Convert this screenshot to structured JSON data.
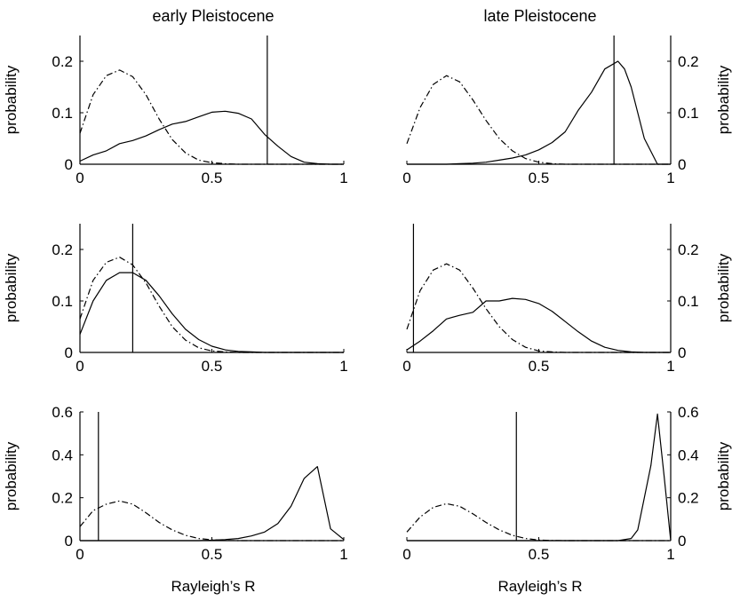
{
  "figure": {
    "col_titles": [
      "early Pleistocene",
      "late Pleistocene"
    ],
    "xlabel": "Rayleigh’s R",
    "ylabel": "probability"
  },
  "chart_data": [
    {
      "type": "line",
      "panel": "row1-left",
      "title": "early Pleistocene",
      "xlabel": "",
      "ylabel": "probability",
      "xlim": [
        0,
        1
      ],
      "ylim": [
        0,
        0.25
      ],
      "xticks": [
        0,
        0.5,
        1
      ],
      "xtick_labels": [
        "0",
        "0.5",
        "1"
      ],
      "yticks": [
        0,
        0.1,
        0.2
      ],
      "ytick_labels": [
        "0",
        "0.1",
        "0.2"
      ],
      "yaxis_side": "left",
      "grid": false,
      "series": [
        {
          "style": "dash-dot",
          "x": [
            0,
            0.05,
            0.1,
            0.15,
            0.2,
            0.25,
            0.3,
            0.35,
            0.4,
            0.45,
            0.5,
            0.55,
            0.6,
            0.65,
            0.7,
            0.75,
            0.8,
            0.85,
            0.9,
            0.95,
            1.0
          ],
          "y": [
            0.06,
            0.135,
            0.172,
            0.183,
            0.17,
            0.135,
            0.088,
            0.048,
            0.022,
            0.008,
            0.003,
            0.001,
            0,
            0,
            0,
            0,
            0,
            0,
            0,
            0,
            0
          ]
        },
        {
          "style": "solid",
          "x": [
            0,
            0.05,
            0.1,
            0.15,
            0.2,
            0.25,
            0.3,
            0.35,
            0.4,
            0.45,
            0.5,
            0.55,
            0.6,
            0.65,
            0.7,
            0.75,
            0.8,
            0.85,
            0.9,
            0.95,
            1.0
          ],
          "y": [
            0.006,
            0.018,
            0.026,
            0.04,
            0.046,
            0.055,
            0.067,
            0.078,
            0.083,
            0.092,
            0.101,
            0.103,
            0.099,
            0.088,
            0.058,
            0.035,
            0.015,
            0.004,
            0.001,
            0,
            0
          ]
        }
      ],
      "vline": 0.71
    },
    {
      "type": "line",
      "panel": "row1-right",
      "title": "late Pleistocene",
      "xlabel": "",
      "ylabel": "probability",
      "xlim": [
        0,
        1
      ],
      "ylim": [
        0,
        0.25
      ],
      "xticks": [
        0,
        0.5,
        1
      ],
      "xtick_labels": [
        "0",
        "0.5",
        "1"
      ],
      "yticks": [
        0,
        0.1,
        0.2
      ],
      "ytick_labels": [
        "0",
        "0.1",
        "0.2"
      ],
      "yaxis_side": "right",
      "grid": false,
      "series": [
        {
          "style": "dash-dot",
          "x": [
            0,
            0.05,
            0.1,
            0.15,
            0.2,
            0.25,
            0.3,
            0.35,
            0.4,
            0.45,
            0.5,
            0.55,
            0.6,
            0.65,
            0.7,
            0.75,
            0.8,
            0.85,
            0.9,
            0.95,
            1.0
          ],
          "y": [
            0.04,
            0.11,
            0.155,
            0.172,
            0.16,
            0.125,
            0.085,
            0.05,
            0.026,
            0.011,
            0.004,
            0.001,
            0,
            0,
            0,
            0,
            0,
            0,
            0,
            0,
            0
          ]
        },
        {
          "style": "solid",
          "x": [
            0,
            0.05,
            0.1,
            0.15,
            0.2,
            0.25,
            0.3,
            0.35,
            0.4,
            0.45,
            0.5,
            0.55,
            0.6,
            0.65,
            0.7,
            0.75,
            0.8,
            0.825,
            0.85,
            0.9,
            0.95,
            1.0
          ],
          "y": [
            0,
            0,
            0,
            0,
            0.001,
            0.002,
            0.004,
            0.008,
            0.012,
            0.018,
            0.028,
            0.042,
            0.063,
            0.105,
            0.14,
            0.185,
            0.2,
            0.185,
            0.15,
            0.05,
            0,
            0
          ]
        }
      ],
      "vline": 0.785
    },
    {
      "type": "line",
      "panel": "row2-left",
      "title": "",
      "xlabel": "",
      "ylabel": "probability",
      "xlim": [
        0,
        1
      ],
      "ylim": [
        0,
        0.25
      ],
      "xticks": [
        0,
        0.5,
        1
      ],
      "xtick_labels": [
        "0",
        "0.5",
        "1"
      ],
      "yticks": [
        0,
        0.1,
        0.2
      ],
      "ytick_labels": [
        "0",
        "0.1",
        "0.2"
      ],
      "yaxis_side": "left",
      "grid": false,
      "series": [
        {
          "style": "dash-dot",
          "x": [
            0,
            0.05,
            0.1,
            0.15,
            0.2,
            0.25,
            0.3,
            0.35,
            0.4,
            0.45,
            0.5,
            0.55,
            0.6,
            0.65,
            0.7,
            0.75,
            0.8,
            0.85,
            0.9,
            0.95,
            1.0
          ],
          "y": [
            0.065,
            0.14,
            0.175,
            0.185,
            0.17,
            0.135,
            0.09,
            0.05,
            0.024,
            0.009,
            0.003,
            0.001,
            0,
            0,
            0,
            0,
            0,
            0,
            0,
            0,
            0
          ]
        },
        {
          "style": "solid",
          "x": [
            0,
            0.05,
            0.1,
            0.15,
            0.2,
            0.25,
            0.3,
            0.35,
            0.4,
            0.45,
            0.5,
            0.55,
            0.6,
            0.65,
            0.7,
            0.75,
            0.8,
            0.85,
            0.9,
            0.95,
            1.0
          ],
          "y": [
            0.035,
            0.1,
            0.14,
            0.155,
            0.155,
            0.14,
            0.11,
            0.075,
            0.045,
            0.025,
            0.012,
            0.005,
            0.002,
            0.001,
            0,
            0,
            0,
            0,
            0,
            0,
            0
          ]
        }
      ],
      "vline": 0.2
    },
    {
      "type": "line",
      "panel": "row2-right",
      "title": "",
      "xlabel": "",
      "ylabel": "probability",
      "xlim": [
        0,
        1
      ],
      "ylim": [
        0,
        0.25
      ],
      "xticks": [
        0,
        0.5,
        1
      ],
      "xtick_labels": [
        "0",
        "0.5",
        "1"
      ],
      "yticks": [
        0,
        0.1,
        0.2
      ],
      "ytick_labels": [
        "0",
        "0.1",
        "0.2"
      ],
      "yaxis_side": "right",
      "grid": false,
      "series": [
        {
          "style": "dash-dot",
          "x": [
            0,
            0.05,
            0.1,
            0.15,
            0.2,
            0.25,
            0.3,
            0.35,
            0.4,
            0.45,
            0.5,
            0.55,
            0.6,
            0.65,
            0.7,
            0.75,
            0.8,
            0.85,
            0.9,
            0.95,
            1.0
          ],
          "y": [
            0.045,
            0.12,
            0.16,
            0.172,
            0.16,
            0.125,
            0.085,
            0.05,
            0.025,
            0.01,
            0.003,
            0.001,
            0,
            0,
            0,
            0,
            0,
            0,
            0,
            0,
            0
          ]
        },
        {
          "style": "solid",
          "x": [
            0,
            0.05,
            0.1,
            0.15,
            0.2,
            0.25,
            0.3,
            0.35,
            0.4,
            0.45,
            0.5,
            0.55,
            0.6,
            0.65,
            0.7,
            0.75,
            0.8,
            0.85,
            0.9,
            0.95,
            1.0
          ],
          "y": [
            0.005,
            0.022,
            0.042,
            0.065,
            0.072,
            0.078,
            0.1,
            0.1,
            0.105,
            0.103,
            0.095,
            0.08,
            0.06,
            0.04,
            0.022,
            0.01,
            0.004,
            0.001,
            0,
            0,
            0
          ]
        }
      ],
      "vline": 0.025
    },
    {
      "type": "line",
      "panel": "row3-left",
      "title": "",
      "xlabel": "Rayleigh’s R",
      "ylabel": "probability",
      "xlim": [
        0,
        1
      ],
      "ylim": [
        0,
        0.6
      ],
      "xticks": [
        0,
        0.5,
        1
      ],
      "xtick_labels": [
        "0",
        "0.5",
        "1"
      ],
      "yticks": [
        0,
        0.2,
        0.4,
        0.6
      ],
      "ytick_labels": [
        "0",
        "0.2",
        "0.4",
        "0.6"
      ],
      "yaxis_side": "left",
      "grid": false,
      "series": [
        {
          "style": "dash-dot",
          "x": [
            0,
            0.05,
            0.1,
            0.15,
            0.2,
            0.25,
            0.3,
            0.35,
            0.4,
            0.45,
            0.5,
            0.55,
            0.6,
            0.65,
            0.7,
            0.75,
            0.8,
            0.85,
            0.9,
            0.95,
            1.0
          ],
          "y": [
            0.065,
            0.14,
            0.17,
            0.185,
            0.17,
            0.13,
            0.085,
            0.05,
            0.025,
            0.01,
            0.004,
            0.001,
            0,
            0,
            0,
            0,
            0,
            0,
            0,
            0,
            0
          ]
        },
        {
          "style": "solid",
          "x": [
            0,
            0.05,
            0.1,
            0.15,
            0.2,
            0.25,
            0.3,
            0.35,
            0.4,
            0.45,
            0.5,
            0.55,
            0.6,
            0.65,
            0.7,
            0.75,
            0.8,
            0.85,
            0.9,
            0.95,
            1.0
          ],
          "y": [
            0,
            0,
            0,
            0,
            0,
            0,
            0,
            0,
            0,
            0,
            0.002,
            0.005,
            0.01,
            0.022,
            0.04,
            0.08,
            0.16,
            0.29,
            0.345,
            0.055,
            0.005
          ]
        }
      ],
      "vline": 0.07
    },
    {
      "type": "line",
      "panel": "row3-right",
      "title": "",
      "xlabel": "Rayleigh’s R",
      "ylabel": "probability",
      "xlim": [
        0,
        1
      ],
      "ylim": [
        0,
        0.6
      ],
      "xticks": [
        0,
        0.5,
        1
      ],
      "xtick_labels": [
        "0",
        "0.5",
        "1"
      ],
      "yticks": [
        0,
        0.2,
        0.4,
        0.6
      ],
      "ytick_labels": [
        "0",
        "0.2",
        "0.4",
        "0.6"
      ],
      "yaxis_side": "right",
      "grid": false,
      "series": [
        {
          "style": "dash-dot",
          "x": [
            0,
            0.05,
            0.1,
            0.15,
            0.2,
            0.25,
            0.3,
            0.35,
            0.4,
            0.45,
            0.5,
            0.55,
            0.6,
            0.65,
            0.7,
            0.75,
            0.8,
            0.85,
            0.9,
            0.95,
            1.0
          ],
          "y": [
            0.04,
            0.11,
            0.155,
            0.172,
            0.16,
            0.125,
            0.085,
            0.05,
            0.025,
            0.01,
            0.003,
            0.001,
            0,
            0,
            0,
            0,
            0,
            0,
            0,
            0,
            0
          ]
        },
        {
          "style": "solid",
          "x": [
            0,
            0.05,
            0.1,
            0.15,
            0.2,
            0.25,
            0.3,
            0.35,
            0.4,
            0.45,
            0.5,
            0.55,
            0.6,
            0.65,
            0.7,
            0.75,
            0.8,
            0.85,
            0.875,
            0.9,
            0.925,
            0.95,
            0.975,
            1.0
          ],
          "y": [
            0,
            0,
            0,
            0,
            0,
            0,
            0,
            0,
            0,
            0,
            0,
            0,
            0,
            0,
            0,
            0,
            0,
            0.01,
            0.05,
            0.2,
            0.35,
            0.59,
            0.3,
            0
          ]
        }
      ],
      "vline": 0.415
    }
  ]
}
